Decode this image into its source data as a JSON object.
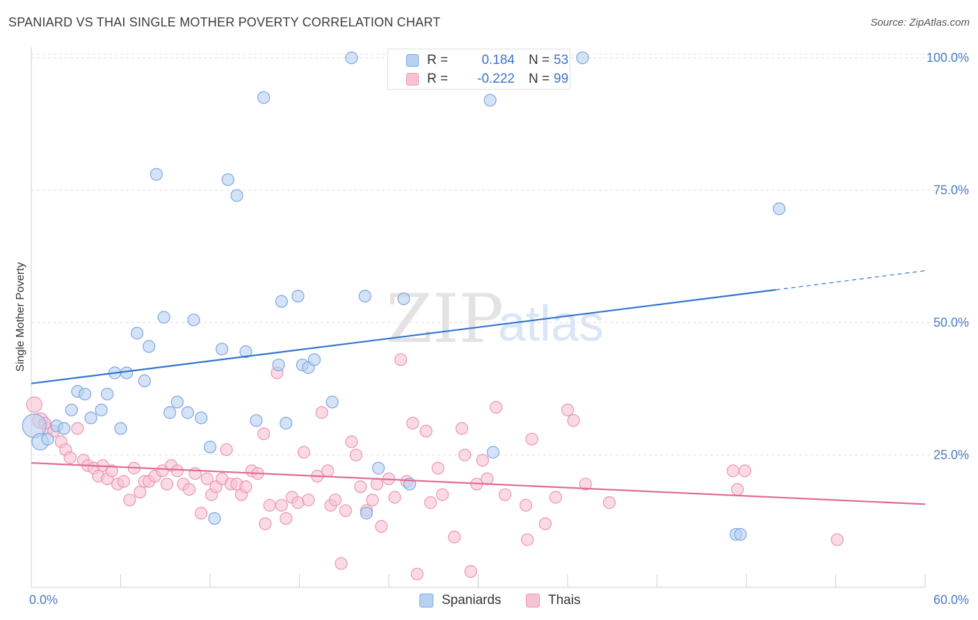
{
  "title": "SPANIARD VS THAI SINGLE MOTHER POVERTY CORRELATION CHART",
  "source": "Source: ZipAtlas.com",
  "watermark": {
    "zip": "ZIP",
    "atlas": "atlas"
  },
  "colors": {
    "blue_fill": "#b7d1f2",
    "blue_stroke": "#7aa6e0",
    "blue_line": "#2f73cf",
    "pink_fill": "#f7c3d3",
    "pink_stroke": "#ec93b1",
    "pink_line": "#e06894",
    "grid": "#dcdcdc",
    "axis_text": "#4a7cc4"
  },
  "legend": {
    "rows": [
      {
        "series": "Spaniards",
        "r_label": "R =",
        "r_value": "0.184",
        "n_label": "N =",
        "n_value": "53"
      },
      {
        "series": "Thais",
        "r_label": "R =",
        "r_value": "-0.222",
        "n_label": "N =",
        "n_value": "99"
      }
    ]
  },
  "bottom_legend": {
    "spaniards": "Spaniards",
    "thais": "Thais"
  },
  "chart_data": {
    "type": "scatter",
    "title": "SPANIARD VS THAI SINGLE MOTHER POVERTY CORRELATION CHART",
    "xlabel": "",
    "ylabel": "Single Mother Poverty",
    "xlim": [
      0,
      60
    ],
    "ylim": [
      0,
      102
    ],
    "x_tick_labels": {
      "min": "0.0%",
      "max": "60.0%"
    },
    "y_ticks": [
      {
        "value": 100,
        "label": "100.0%"
      },
      {
        "value": 75,
        "label": "75.0%"
      },
      {
        "value": 50,
        "label": "50.0%"
      },
      {
        "value": 25,
        "label": "25.0%"
      }
    ],
    "grid": true,
    "legend_position": "top-center",
    "series": [
      {
        "name": "Spaniards",
        "R": 0.184,
        "N": 53,
        "trend": {
          "x0": 0,
          "y0": 38.5,
          "x1": 50,
          "y1": 56.2,
          "dash_x1": 60,
          "dash_y1": 59.8
        },
        "points": [
          [
            0.2,
            30.5,
            2
          ],
          [
            0.6,
            27.5,
            1.4
          ],
          [
            1.1,
            28,
            1
          ],
          [
            1.7,
            30.5,
            1
          ],
          [
            2.2,
            30,
            1
          ],
          [
            2.7,
            33.5,
            1
          ],
          [
            3.1,
            37,
            1
          ],
          [
            3.6,
            36.5,
            1
          ],
          [
            4.0,
            32,
            1
          ],
          [
            4.7,
            33.5,
            1
          ],
          [
            5.1,
            36.5,
            1
          ],
          [
            5.6,
            40.5,
            1
          ],
          [
            6.0,
            30,
            1
          ],
          [
            6.4,
            40.5,
            1
          ],
          [
            7.1,
            48,
            1
          ],
          [
            7.6,
            39,
            1
          ],
          [
            7.9,
            45.5,
            1
          ],
          [
            8.4,
            78,
            1
          ],
          [
            8.9,
            51,
            1
          ],
          [
            9.3,
            33,
            1
          ],
          [
            9.8,
            35,
            1
          ],
          [
            10.5,
            33,
            1
          ],
          [
            10.9,
            50.5,
            1
          ],
          [
            11.4,
            32,
            1
          ],
          [
            12.0,
            26.5,
            1
          ],
          [
            12.3,
            13,
            1
          ],
          [
            12.8,
            45,
            1
          ],
          [
            13.2,
            77,
            1
          ],
          [
            13.8,
            74,
            1
          ],
          [
            14.4,
            44.5,
            1
          ],
          [
            15.1,
            31.5,
            1
          ],
          [
            15.6,
            92.5,
            1
          ],
          [
            16.6,
            42,
            1
          ],
          [
            16.8,
            54,
            1
          ],
          [
            17.1,
            31,
            1
          ],
          [
            17.9,
            55,
            1
          ],
          [
            18.2,
            42,
            1
          ],
          [
            18.6,
            41.5,
            1
          ],
          [
            19.0,
            43,
            1
          ],
          [
            20.2,
            35,
            1
          ],
          [
            21.5,
            100,
            1
          ],
          [
            22.4,
            55,
            1
          ],
          [
            22.5,
            14,
            1
          ],
          [
            23.3,
            22.5,
            1
          ],
          [
            24.5,
            100,
            1
          ],
          [
            25.0,
            54.5,
            1
          ],
          [
            25.4,
            19.5,
            1
          ],
          [
            30.8,
            92,
            1
          ],
          [
            31.0,
            25.5,
            1
          ],
          [
            37.0,
            100,
            1
          ],
          [
            47.3,
            10,
            1
          ],
          [
            47.6,
            10,
            1
          ],
          [
            50.2,
            71.5,
            1
          ]
        ]
      },
      {
        "name": "Thais",
        "R": -0.222,
        "N": 99,
        "trend": {
          "x0": 0,
          "y0": 23.5,
          "x1": 60,
          "y1": 15.7
        },
        "points": [
          [
            0.2,
            34.5,
            1.3
          ],
          [
            0.6,
            31.5,
            1.3
          ],
          [
            1.1,
            30,
            1
          ],
          [
            1.5,
            29.5,
            1
          ],
          [
            2.0,
            27.5,
            1
          ],
          [
            2.3,
            26,
            1
          ],
          [
            2.6,
            24.5,
            1
          ],
          [
            3.1,
            30,
            1
          ],
          [
            3.5,
            24,
            1
          ],
          [
            3.8,
            23,
            1
          ],
          [
            4.2,
            22.5,
            1
          ],
          [
            4.5,
            21,
            1
          ],
          [
            4.8,
            23,
            1
          ],
          [
            5.1,
            20.5,
            1
          ],
          [
            5.4,
            22,
            1
          ],
          [
            5.8,
            19.5,
            1
          ],
          [
            6.2,
            20,
            1
          ],
          [
            6.6,
            16.5,
            1
          ],
          [
            6.9,
            22.5,
            1
          ],
          [
            7.3,
            18,
            1
          ],
          [
            7.6,
            20,
            1
          ],
          [
            7.9,
            20,
            1
          ],
          [
            8.3,
            21,
            1
          ],
          [
            8.8,
            22,
            1
          ],
          [
            9.1,
            19.5,
            1
          ],
          [
            9.4,
            23,
            1
          ],
          [
            9.8,
            22,
            1
          ],
          [
            10.2,
            19.5,
            1
          ],
          [
            10.6,
            18.5,
            1
          ],
          [
            11.0,
            21.5,
            1
          ],
          [
            11.4,
            14,
            1
          ],
          [
            11.8,
            20.5,
            1
          ],
          [
            12.1,
            17.5,
            1
          ],
          [
            12.4,
            19,
            1
          ],
          [
            12.8,
            20.5,
            1
          ],
          [
            13.1,
            26,
            1
          ],
          [
            13.4,
            19.5,
            1
          ],
          [
            13.8,
            19.5,
            1
          ],
          [
            14.1,
            17.5,
            1
          ],
          [
            14.4,
            19,
            1
          ],
          [
            14.8,
            22,
            1
          ],
          [
            15.2,
            21.5,
            1
          ],
          [
            15.6,
            29,
            1
          ],
          [
            15.7,
            12,
            1
          ],
          [
            16.0,
            15.5,
            1
          ],
          [
            16.5,
            40.5,
            1
          ],
          [
            16.8,
            15.5,
            1
          ],
          [
            17.1,
            13,
            1
          ],
          [
            17.5,
            17,
            1
          ],
          [
            17.9,
            16,
            1
          ],
          [
            18.3,
            25.5,
            1
          ],
          [
            18.6,
            16.5,
            1
          ],
          [
            19.2,
            21,
            1
          ],
          [
            19.5,
            33,
            1
          ],
          [
            19.9,
            22,
            1
          ],
          [
            20.1,
            15.5,
            1
          ],
          [
            20.4,
            16.5,
            1
          ],
          [
            20.8,
            4.5,
            1
          ],
          [
            21.1,
            14.5,
            1
          ],
          [
            21.5,
            27.5,
            1
          ],
          [
            21.8,
            25,
            1
          ],
          [
            22.1,
            19,
            1
          ],
          [
            22.5,
            14.5,
            1
          ],
          [
            22.9,
            16.5,
            1
          ],
          [
            23.2,
            19.5,
            1
          ],
          [
            23.5,
            11.5,
            1
          ],
          [
            24.0,
            20.5,
            1
          ],
          [
            24.4,
            17,
            1
          ],
          [
            24.8,
            43,
            1
          ],
          [
            25.2,
            20,
            1
          ],
          [
            25.6,
            31,
            1
          ],
          [
            25.9,
            2.5,
            1
          ],
          [
            26.5,
            29.5,
            1
          ],
          [
            26.8,
            16,
            1
          ],
          [
            27.3,
            22.5,
            1
          ],
          [
            27.6,
            17.5,
            1
          ],
          [
            28.4,
            9.5,
            1
          ],
          [
            28.9,
            30,
            1
          ],
          [
            29.1,
            25,
            1
          ],
          [
            29.5,
            3,
            1
          ],
          [
            29.9,
            19.5,
            1
          ],
          [
            30.3,
            24,
            1
          ],
          [
            30.6,
            20.5,
            1
          ],
          [
            31.2,
            34,
            1
          ],
          [
            31.8,
            17.5,
            1
          ],
          [
            33.2,
            15.5,
            1
          ],
          [
            33.6,
            28,
            1
          ],
          [
            33.3,
            9,
            1
          ],
          [
            34.5,
            12,
            1
          ],
          [
            35.2,
            17,
            1
          ],
          [
            36.0,
            33.5,
            1
          ],
          [
            36.4,
            31.5,
            1
          ],
          [
            37.2,
            19.5,
            1
          ],
          [
            38.8,
            16,
            1
          ],
          [
            47.1,
            22,
            1
          ],
          [
            47.4,
            18.5,
            1
          ],
          [
            47.9,
            22,
            1
          ],
          [
            54.1,
            9,
            1
          ],
          [
            0.9,
            31,
            1
          ]
        ]
      }
    ]
  }
}
